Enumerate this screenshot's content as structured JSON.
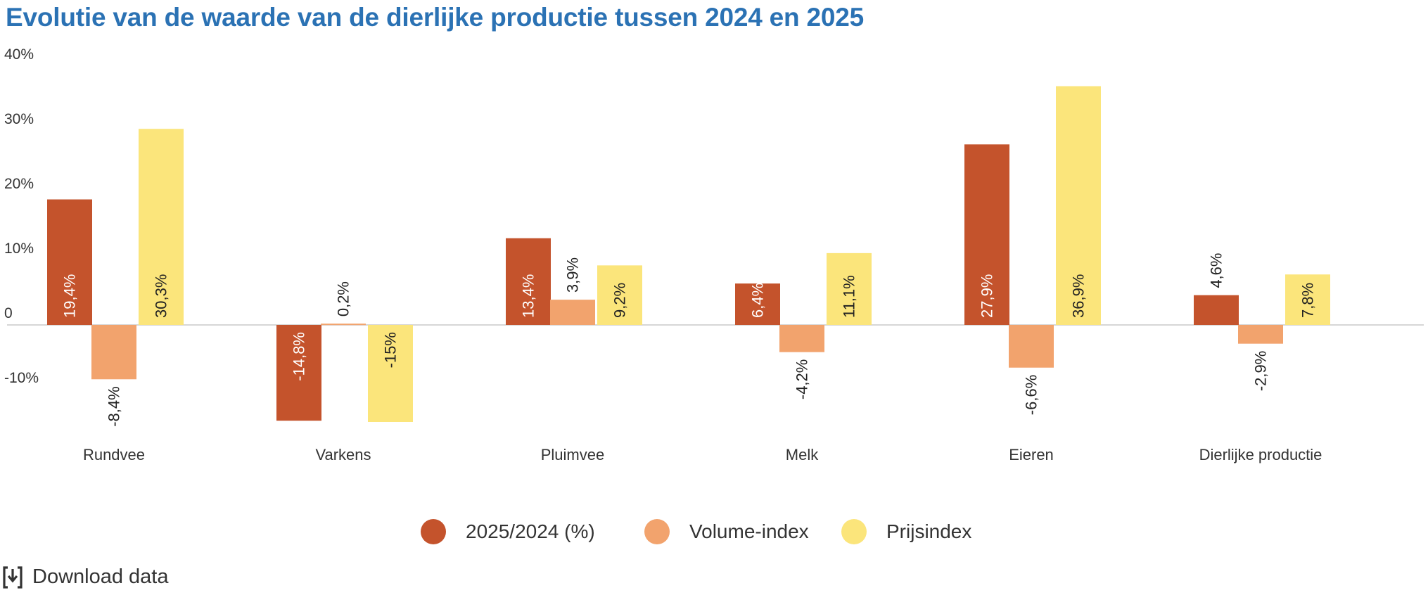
{
  "chart_data": {
    "type": "bar",
    "title": "Evolutie van de waarde van de dierlijke productie tussen 2024 en 2025",
    "categories": [
      "Rundvee",
      "Varkens",
      "Pluimvee",
      "Melk",
      "Eieren",
      "Dierlijke productie"
    ],
    "series": [
      {
        "name": "2025/2024 (%)",
        "color": "#c4532c",
        "values": [
          19.4,
          -14.8,
          13.4,
          6.4,
          27.9,
          4.6
        ],
        "labels": [
          "19,4%",
          "-14,8%",
          "13,4%",
          "6,4%",
          "27,9%",
          "4,6%"
        ]
      },
      {
        "name": "Volume-index",
        "color": "#f2a36d",
        "values": [
          -8.4,
          0.2,
          3.9,
          -4.2,
          -6.6,
          -2.9
        ],
        "labels": [
          "-8,4%",
          "0,2%",
          "3,9%",
          "-4,2%",
          "-6,6%",
          "-2,9%"
        ]
      },
      {
        "name": "Prijsindex",
        "color": "#fbe57b",
        "values": [
          30.3,
          -15,
          9.2,
          11.1,
          36.9,
          7.8
        ],
        "labels": [
          "30,3%",
          "-15%",
          "9,2%",
          "11,1%",
          "36,9%",
          "7,8%"
        ]
      }
    ],
    "y_ticks": [
      40,
      30,
      20,
      10,
      0,
      -10
    ],
    "y_tick_labels": [
      "40%",
      "30%",
      "20%",
      "10%",
      "0",
      "-10%"
    ],
    "ylim": [
      -17,
      40
    ],
    "xlabel": "",
    "ylabel": "",
    "legend_position": "bottom-center"
  },
  "download": {
    "label": "Download data",
    "icon": "download-icon"
  }
}
